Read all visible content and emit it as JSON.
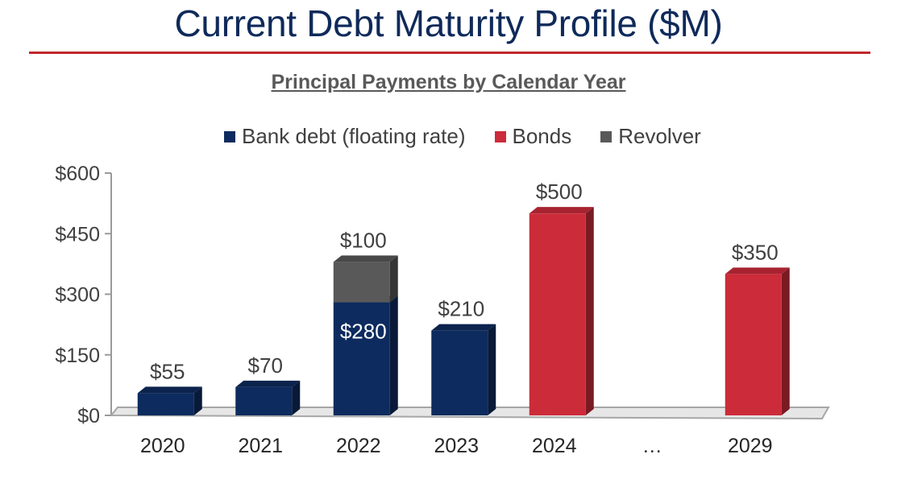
{
  "page": {
    "title": "Current Debt Maturity Profile ($M)",
    "accent_color": "#c1272d",
    "title_color": "#0f2a5a"
  },
  "chart_data": {
    "type": "bar",
    "stacked": true,
    "title": "Principal Payments by Calendar Year",
    "categories": [
      "2020",
      "2021",
      "2022",
      "2023",
      "2024",
      "…",
      "2029"
    ],
    "series": [
      {
        "name": "Bank debt (floating rate)",
        "color": "#0d2b5e",
        "values": [
          55,
          70,
          280,
          210,
          0,
          0,
          0
        ]
      },
      {
        "name": "Bonds",
        "color": "#cc2b3a",
        "values": [
          0,
          0,
          0,
          0,
          500,
          0,
          350
        ]
      },
      {
        "name": "Revolver",
        "color": "#595959",
        "values": [
          0,
          0,
          100,
          0,
          0,
          0,
          0
        ]
      }
    ],
    "data_labels": [
      {
        "category": "2020",
        "series": "Bank debt (floating rate)",
        "text": "$55",
        "position": "above"
      },
      {
        "category": "2021",
        "series": "Bank debt (floating rate)",
        "text": "$70",
        "position": "above"
      },
      {
        "category": "2022",
        "series": "Bank debt (floating rate)",
        "text": "$280",
        "position": "inside"
      },
      {
        "category": "2022",
        "series": "Revolver",
        "text": "$100",
        "position": "above"
      },
      {
        "category": "2023",
        "series": "Bank debt (floating rate)",
        "text": "$210",
        "position": "above"
      },
      {
        "category": "2024",
        "series": "Bonds",
        "text": "$500",
        "position": "above"
      },
      {
        "category": "2029",
        "series": "Bonds",
        "text": "$350",
        "position": "above"
      }
    ],
    "y_ticks": [
      "$0",
      "$150",
      "$300",
      "$450",
      "$600"
    ],
    "ylim": [
      0,
      600
    ],
    "xlabel": "",
    "ylabel": "",
    "legend_position": "top",
    "grid": false,
    "style": "3d-bars"
  }
}
